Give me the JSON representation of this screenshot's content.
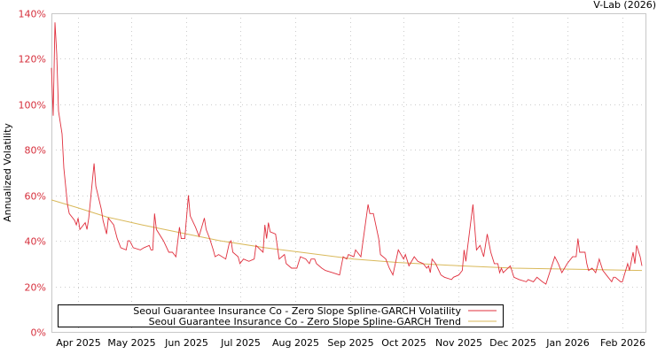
{
  "chart_data": {
    "type": "line",
    "title": "",
    "credit": "V-Lab (2026)",
    "ylabel": "Annualized Volatility",
    "xlabel": "",
    "x_units": "days since 2025-03-17",
    "xlim": [
      0,
      334
    ],
    "ylim": [
      0,
      140
    ],
    "y_ticks": [
      0,
      20,
      40,
      60,
      80,
      100,
      120,
      140
    ],
    "y_tick_labels": [
      "0%",
      "20%",
      "40%",
      "60%",
      "80%",
      "100%",
      "120%",
      "140%"
    ],
    "x_ticks": [
      15,
      45,
      76,
      106,
      137,
      168,
      198,
      229,
      259,
      290,
      321
    ],
    "x_tick_labels": [
      "Apr 2025",
      "May 2025",
      "Jun 2025",
      "Jul 2025",
      "Aug 2025",
      "Sep 2025",
      "Oct 2025",
      "Nov 2025",
      "Dec 2025",
      "Jan 2026",
      "Feb 2026"
    ],
    "grid": true,
    "legend_position": "bottom-left",
    "colors": {
      "volatility": "#e0303e",
      "trend": "#d9b95a",
      "tick_label": "#d62f3c",
      "grid": "#cccccc"
    },
    "series": [
      {
        "name": "Seoul Guarantee Insurance Co - Zero Slope Spline-GARCH Volatility",
        "x": [
          0,
          1,
          2,
          3,
          4,
          6,
          7,
          9,
          10,
          13,
          14,
          15,
          16,
          19,
          20,
          21,
          24,
          25,
          28,
          29,
          31,
          32,
          35,
          37,
          39,
          42,
          43,
          44,
          46,
          50,
          52,
          55,
          56,
          57,
          58,
          59,
          63,
          66,
          68,
          70,
          72,
          73,
          75,
          77,
          78,
          81,
          83,
          86,
          87,
          89,
          91,
          92,
          94,
          98,
          100,
          101,
          102,
          105,
          106,
          108,
          111,
          114,
          115,
          119,
          120,
          121,
          122,
          123,
          126,
          128,
          131,
          132,
          135,
          138,
          140,
          143,
          145,
          146,
          148,
          149,
          152,
          154,
          158,
          162,
          164,
          166,
          167,
          170,
          171,
          174,
          178,
          179,
          181,
          184,
          185,
          188,
          190,
          192,
          195,
          198,
          199,
          201,
          204,
          206,
          209,
          211,
          212,
          213,
          214,
          216,
          219,
          221,
          225,
          226,
          229,
          231,
          232,
          233,
          237,
          239,
          241,
          243,
          245,
          247,
          249,
          251,
          252,
          253,
          254,
          258,
          260,
          263,
          267,
          268,
          271,
          273,
          276,
          278,
          283,
          285,
          287,
          290,
          293,
          295,
          296,
          297,
          300,
          301,
          302,
          304,
          306,
          308,
          310,
          313,
          315,
          316,
          317,
          320,
          321,
          324,
          325,
          327,
          328,
          329,
          331,
          332
        ],
        "y": [
          116,
          95,
          136,
          122,
          97,
          87,
          72,
          56,
          52,
          49,
          47,
          50,
          45,
          48,
          45,
          50,
          74,
          64,
          54,
          49,
          43,
          50,
          47,
          41,
          37,
          36,
          40,
          40,
          37,
          36,
          37,
          38,
          36,
          36,
          52,
          45,
          40,
          35,
          35,
          33,
          46,
          41,
          41,
          60,
          51,
          46,
          42,
          50,
          45,
          41,
          36,
          33,
          34,
          32,
          39,
          40,
          35,
          33,
          30,
          32,
          31,
          32,
          38,
          35,
          47,
          41,
          48,
          44,
          43,
          32,
          34,
          30,
          28,
          28,
          33,
          32,
          30,
          32,
          32,
          30,
          28,
          27,
          26,
          25,
          33,
          32,
          34,
          33,
          36,
          33,
          56,
          52,
          52,
          41,
          34,
          32,
          28,
          25,
          36,
          32,
          34,
          29,
          33,
          31,
          30,
          28,
          29,
          26,
          32,
          30,
          25,
          24,
          23,
          24,
          25,
          27,
          36,
          31,
          56,
          36,
          38,
          33,
          43,
          35,
          30,
          30,
          26,
          28,
          26,
          29,
          24,
          23,
          22,
          23,
          22,
          24,
          22,
          21,
          33,
          30,
          26,
          30,
          33,
          33,
          41,
          35,
          35,
          30,
          27,
          28,
          26,
          32,
          27,
          24,
          22,
          24,
          24,
          22,
          22,
          30,
          27,
          35,
          30,
          38,
          33,
          29
        ]
      },
      {
        "name": "Seoul Guarantee Insurance Co - Zero Slope Spline-GARCH Trend",
        "x": [
          0,
          15,
          31,
          51,
          76,
          95,
          120,
          145,
          170,
          195,
          230,
          260,
          295,
          332
        ],
        "y": [
          58,
          54.5,
          50.5,
          47,
          43,
          40,
          37,
          34.5,
          32,
          30.5,
          29,
          28,
          27.5,
          27
        ]
      }
    ]
  }
}
